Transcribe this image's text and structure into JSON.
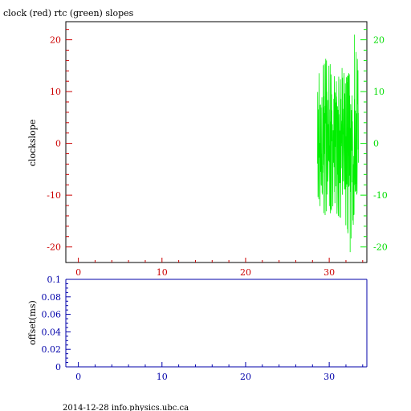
{
  "page": {
    "title": "clock (red) rtc (green) slopes",
    "footer": "2014-12-28 info.physics.ubc.ca"
  },
  "colors": {
    "clock": "#cc0000",
    "rtc": "#00ee00",
    "offset": "#0000aa",
    "frame": "#000000"
  },
  "chart_data": [
    {
      "type": "line",
      "title": "clock (red) rtc (green) slopes",
      "ylabel": "clockslope",
      "xlim": [
        -1.5,
        34.5
      ],
      "ylim": [
        -23,
        23.5
      ],
      "x_ticks": [
        0,
        10,
        20,
        30
      ],
      "x_tick_labels": [
        "0",
        "10",
        "20",
        "30"
      ],
      "y_ticks_left": [
        -20,
        -10,
        0,
        10,
        20
      ],
      "y_tick_labels_left": [
        "-20",
        "-10",
        "0",
        "10",
        "20"
      ],
      "y_ticks_right": [
        -20,
        -10,
        0,
        10,
        20
      ],
      "y_tick_labels_right": [
        "-20",
        "-10",
        "0",
        "10",
        "20"
      ],
      "series": [
        {
          "color": "#00ee00",
          "x_range": [
            28.6,
            33.5
          ],
          "envelope_upper": [
            [
              28.6,
              14
            ],
            [
              29.0,
              15
            ],
            [
              29.5,
              17
            ],
            [
              30.0,
              16
            ],
            [
              30.5,
              14
            ],
            [
              31.0,
              13
            ],
            [
              31.5,
              15
            ],
            [
              32.0,
              13
            ],
            [
              32.5,
              14
            ],
            [
              33.0,
              21
            ],
            [
              33.5,
              15
            ]
          ],
          "envelope_lower": [
            [
              28.6,
              -12
            ],
            [
              29.0,
              -13
            ],
            [
              29.5,
              -15
            ],
            [
              30.0,
              -14
            ],
            [
              30.5,
              -13
            ],
            [
              31.0,
              -14
            ],
            [
              31.5,
              -15
            ],
            [
              32.0,
              -16
            ],
            [
              32.5,
              -21
            ],
            [
              33.0,
              -14
            ],
            [
              33.5,
              -15
            ]
          ],
          "core_range": [
            -10,
            10
          ],
          "samples": 260
        }
      ]
    },
    {
      "type": "line",
      "ylabel": "offset(ms)",
      "xlim": [
        -1.5,
        34.5
      ],
      "ylim": [
        0,
        0.1
      ],
      "x_ticks": [
        0,
        10,
        20,
        30
      ],
      "x_tick_labels": [
        "0",
        "10",
        "20",
        "30"
      ],
      "y_ticks": [
        0,
        0.02,
        0.04,
        0.06,
        0.08,
        0.1
      ],
      "y_tick_labels": [
        "0",
        "0.02",
        "0.04",
        "0.06",
        "0.08",
        "0.1"
      ],
      "series": []
    }
  ]
}
